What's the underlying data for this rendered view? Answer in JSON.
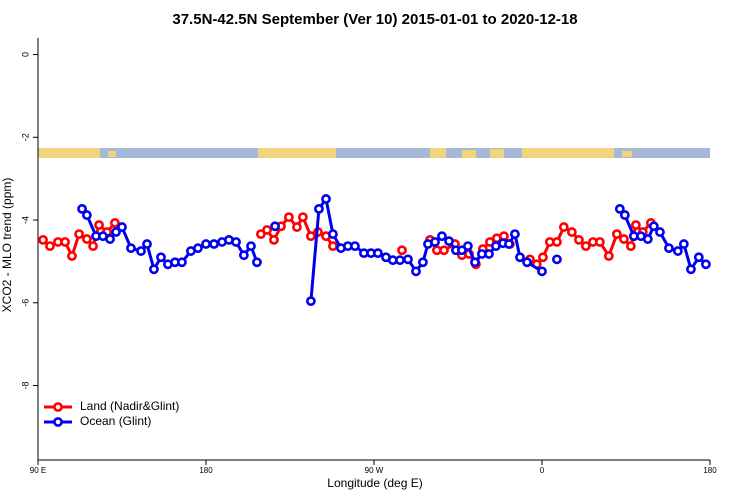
{
  "chart_data": {
    "type": "line",
    "title": "37.5N-42.5N September (Ver 10)   2015-01-01 to 2020-12-18",
    "x_label": "Longitude (deg E)",
    "y_label": "XCO2 - MLO trend (ppm)",
    "xlim": [
      90,
      450
    ],
    "ylim": [
      -9.8,
      0.4
    ],
    "xticks": [
      {
        "value": 90,
        "label": "90 E"
      },
      180,
      {
        "value": 270,
        "label": "90 W"
      },
      {
        "value": 360,
        "label": "0"
      },
      {
        "value": 450,
        "label": "180"
      }
    ],
    "yticks": [
      0,
      -2,
      -4,
      -6,
      -8
    ],
    "legend": "bottom-left",
    "series": [
      {
        "name": "Land (Nadir&Glint)",
        "color": "#ff0000",
        "x": [
          92.7,
          96.4,
          100.7,
          104.5,
          108.2,
          112.0,
          116.2,
          119.5,
          122.7,
          127.0,
          131.2,
          null,
          209.4,
          212.7,
          216.4,
          220.2,
          224.4,
          228.7,
          231.9,
          236.2,
          240.0,
          244.3,
          248.0,
          null,
          285.0,
          null,
          300.0,
          303.7,
          307.5,
          313.4,
          317.1,
          320.9,
          324.6,
          328.3,
          332.1,
          335.8,
          339.6,
          342.8,
          null,
          353.5,
          357.2,
          360.5,
          364.2,
          368.0,
          371.7,
          376.0,
          379.8,
          383.5,
          387.3,
          391.0,
          395.8,
          400.1,
          403.9,
          407.6,
          410.3,
          414.0,
          418.3
        ],
        "values": [
          -4.48,
          -4.63,
          -4.53,
          -4.53,
          -4.87,
          -4.34,
          -4.46,
          -4.63,
          -4.12,
          -4.29,
          -4.07,
          null,
          -4.34,
          -4.24,
          -4.48,
          -4.15,
          -3.93,
          -4.17,
          -3.93,
          -4.39,
          -4.29,
          -4.39,
          -4.63,
          null,
          -4.73,
          null,
          -4.48,
          -4.73,
          -4.73,
          -4.58,
          -4.85,
          -4.82,
          -5.07,
          -4.7,
          -4.53,
          -4.44,
          -4.39,
          -4.58,
          null,
          -4.95,
          -5.07,
          -4.9,
          -4.53,
          -4.53,
          -4.17,
          -4.29,
          -4.48,
          -4.63,
          -4.53,
          -4.53,
          -4.87,
          -4.34,
          -4.46,
          -4.63,
          -4.12,
          -4.29,
          -4.07
        ]
      },
      {
        "name": "Ocean (Glint)",
        "color": "#0000ee",
        "x": [
          113.6,
          116.2,
          121.1,
          124.8,
          128.6,
          131.8,
          135.0,
          139.8,
          145.2,
          148.4,
          152.1,
          155.9,
          159.6,
          163.4,
          167.1,
          171.9,
          175.7,
          180.0,
          184.3,
          188.6,
          192.3,
          196.1,
          200.3,
          204.1,
          207.3,
          null,
          217.0,
          null,
          236.2,
          240.5,
          244.3,
          248.0,
          252.3,
          256.0,
          259.8,
          264.6,
          268.4,
          272.1,
          276.4,
          280.1,
          283.9,
          288.2,
          292.5,
          296.2,
          298.9,
          302.7,
          306.4,
          310.2,
          313.9,
          317.1,
          320.3,
          324.1,
          327.8,
          331.6,
          335.3,
          339.1,
          342.3,
          345.5,
          348.2,
          352.0,
          360.0,
          null,
          368.0,
          null,
          401.7,
          404.4,
          409.2,
          413.0,
          416.7,
          419.9,
          423.2,
          428.0,
          432.8,
          436.0,
          439.8,
          444.0,
          447.8
        ],
        "values": [
          -3.73,
          -3.88,
          -4.39,
          -4.39,
          -4.46,
          -4.29,
          -4.17,
          -4.68,
          -4.75,
          -4.58,
          -5.19,
          -4.9,
          -5.07,
          -5.02,
          -5.02,
          -4.75,
          -4.68,
          -4.58,
          -4.58,
          -4.53,
          -4.48,
          -4.53,
          -4.85,
          -4.63,
          -5.02,
          null,
          -4.15,
          null,
          -5.96,
          -3.73,
          -3.49,
          -4.34,
          -4.68,
          -4.63,
          -4.63,
          -4.8,
          -4.8,
          -4.8,
          -4.9,
          -4.97,
          -4.97,
          -4.95,
          -5.24,
          -5.02,
          -4.58,
          -4.53,
          -4.39,
          -4.51,
          -4.73,
          -4.73,
          -4.63,
          -5.02,
          -4.82,
          -4.82,
          -4.63,
          -4.56,
          -4.58,
          -4.34,
          -4.9,
          -5.02,
          -5.24,
          null,
          -4.95,
          null,
          -3.73,
          -3.88,
          -4.39,
          -4.39,
          -4.46,
          -4.15,
          -4.29,
          -4.68,
          -4.75,
          -4.58,
          -5.19,
          -4.9,
          -5.07
        ]
      }
    ]
  }
}
